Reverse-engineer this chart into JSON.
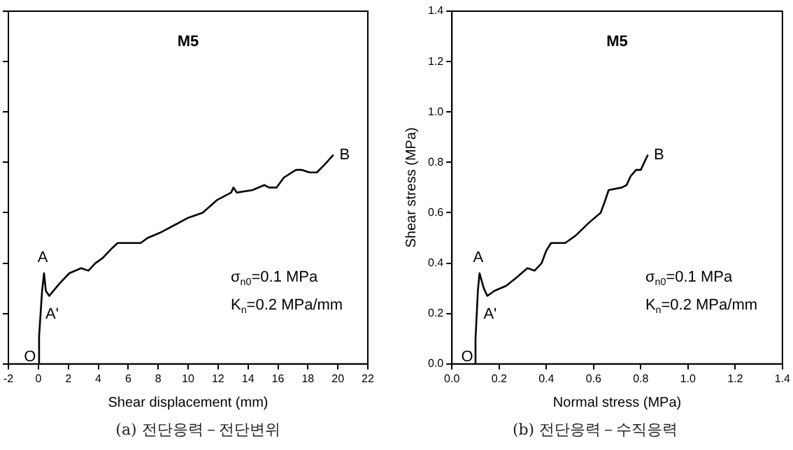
{
  "chart_data": [
    {
      "type": "line",
      "title": "M5",
      "xlabel": "Shear displacement (mm)",
      "color": "#000000",
      "marker": "none",
      "line_style": "solid",
      "grid": false,
      "legend": false,
      "tick_labels": "x",
      "x": [
        0,
        0.05,
        0.15,
        0.25,
        0.38,
        0.5,
        0.73,
        1.43,
        2.07,
        2.86,
        3.34,
        3.81,
        4.29,
        4.93,
        5.3,
        5.88,
        6.83,
        7.3,
        8.1,
        9.06,
        10.0,
        10.97,
        11.92,
        12.87,
        13.03,
        13.25,
        14.3,
        15.1,
        15.4,
        15.9,
        16.4,
        17.2,
        17.6,
        18.1,
        18.6,
        19.1,
        19.7
      ],
      "values": [
        0,
        0.11,
        0.2,
        0.29,
        0.36,
        0.29,
        0.27,
        0.32,
        0.36,
        0.38,
        0.37,
        0.4,
        0.42,
        0.46,
        0.48,
        0.48,
        0.48,
        0.5,
        0.52,
        0.55,
        0.58,
        0.6,
        0.65,
        0.68,
        0.7,
        0.68,
        0.69,
        0.71,
        0.7,
        0.7,
        0.74,
        0.77,
        0.77,
        0.76,
        0.76,
        0.79,
        0.83
      ],
      "xlim": [
        -2,
        22
      ],
      "xticks": [
        -2,
        0,
        2,
        4,
        6,
        8,
        10,
        12,
        14,
        16,
        18,
        20,
        22
      ],
      "ylim": [
        0,
        1.4
      ],
      "yticks": [
        0,
        0.2,
        0.4,
        0.6,
        0.8,
        1.0,
        1.2,
        1.4
      ],
      "annotations": [
        {
          "text": "A",
          "x": 0.38,
          "y": 0.36
        },
        {
          "text": "A'",
          "x": 0.73,
          "y": 0.27
        },
        {
          "text": "O",
          "x": 0,
          "y": 0
        },
        {
          "text": "B",
          "x": 19.7,
          "y": 0.83
        },
        "σ$_{n0}$=0.1 MPa",
        "K$_{n}$=0.2 MPa/mm",
        "(a) 전단응력－전단변위"
      ]
    },
    {
      "type": "line",
      "title": "M5",
      "xlabel": "Normal stress (MPa)",
      "ylabel": "Shear stress (MPa)",
      "color": "#000000",
      "marker": "none",
      "line_style": "solid",
      "grid": false,
      "legend": false,
      "x": [
        0.1,
        0.1,
        0.11,
        0.117,
        0.135,
        0.15,
        0.18,
        0.23,
        0.27,
        0.32,
        0.35,
        0.38,
        0.4,
        0.42,
        0.48,
        0.525,
        0.58,
        0.63,
        0.646,
        0.664,
        0.72,
        0.74,
        0.757,
        0.78,
        0.8,
        0.83
      ],
      "values": [
        0,
        0.1,
        0.29,
        0.36,
        0.3,
        0.27,
        0.29,
        0.31,
        0.34,
        0.38,
        0.37,
        0.4,
        0.45,
        0.48,
        0.48,
        0.51,
        0.56,
        0.6,
        0.64,
        0.69,
        0.7,
        0.71,
        0.745,
        0.77,
        0.77,
        0.83
      ],
      "xlim": [
        0,
        1.4
      ],
      "xticks": [
        {
          "value": 0,
          "label": "0.0"
        },
        {
          "value": 0.2,
          "label": "0.2"
        },
        {
          "value": 0.4,
          "label": "0.4"
        },
        {
          "value": 0.6,
          "label": "0.6"
        },
        {
          "value": 0.8,
          "label": "0.8"
        },
        {
          "value": 1.0,
          "label": "1.0"
        },
        {
          "value": 1.2,
          "label": "1.2"
        },
        {
          "value": 1.4,
          "label": "1.4"
        }
      ],
      "ylim": [
        0,
        1.4
      ],
      "yticks": [
        {
          "value": 0,
          "label": "0.0"
        },
        {
          "value": 0.2,
          "label": "0.2"
        },
        {
          "value": 0.4,
          "label": "0.4"
        },
        {
          "value": 0.6,
          "label": "0.6"
        },
        {
          "value": 0.8,
          "label": "0.8"
        },
        {
          "value": 1.0,
          "label": "1.0"
        },
        {
          "value": 1.2,
          "label": "1.2"
        },
        {
          "value": 1.4,
          "label": "1.4"
        }
      ],
      "annotations": [
        {
          "text": "A",
          "x": 0.117,
          "y": 0.36
        },
        {
          "text": "A'",
          "x": 0.15,
          "y": 0.27
        },
        {
          "text": "O",
          "x": 0.1,
          "y": 0
        },
        {
          "text": "B",
          "x": 0.83,
          "y": 0.83
        },
        "σ$_{n0}$=0.1 MPa",
        "K$_{n}$=0.2 MPa/mm",
        "(b) 전단응력－수직응력"
      ]
    }
  ]
}
